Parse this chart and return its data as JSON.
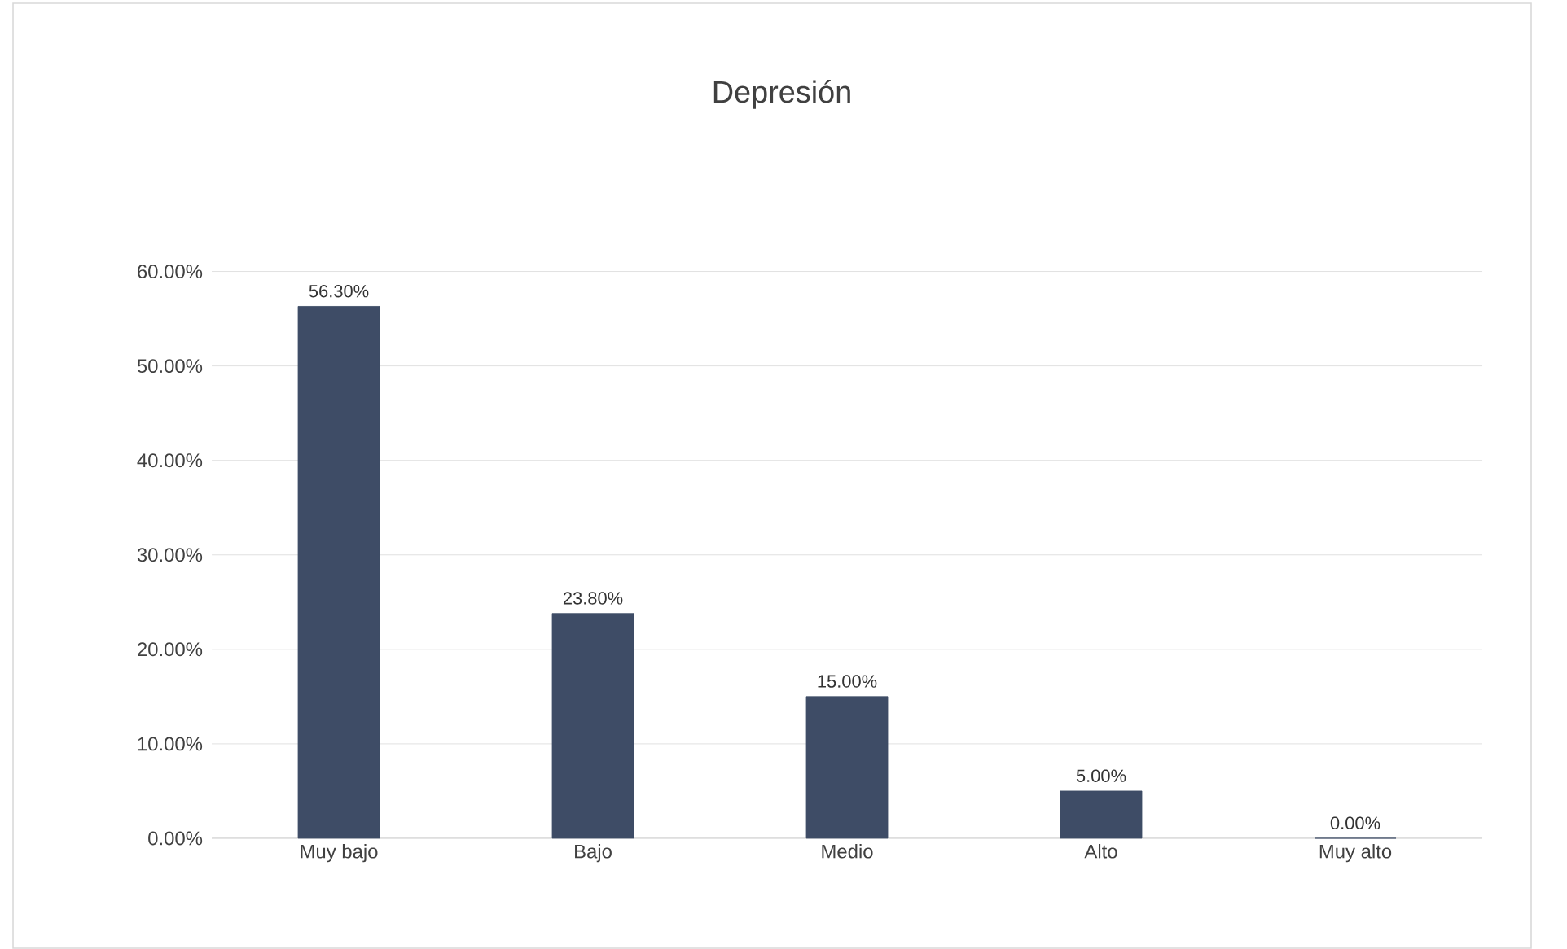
{
  "chart_data": {
    "type": "bar",
    "title": "Depresión",
    "categories": [
      "Muy bajo",
      "Bajo",
      "Medio",
      "Alto",
      "Muy alto"
    ],
    "values": [
      56.3,
      23.8,
      15.0,
      5.0,
      0.0
    ],
    "value_labels": [
      "56.30%",
      "23.80%",
      "15.00%",
      "5.00%",
      "0.00%"
    ],
    "color": "#3e4c66",
    "ylim": [
      0,
      60
    ],
    "yticks": [
      {
        "value": 0,
        "label": "0.00%"
      },
      {
        "value": 10,
        "label": "10.00%"
      },
      {
        "value": 20,
        "label": "20.00%"
      },
      {
        "value": 30,
        "label": "30.00%"
      },
      {
        "value": 40,
        "label": "40.00%"
      },
      {
        "value": 50,
        "label": "50.00%"
      },
      {
        "value": 60,
        "label": "60.00%"
      }
    ],
    "grid": "y"
  }
}
